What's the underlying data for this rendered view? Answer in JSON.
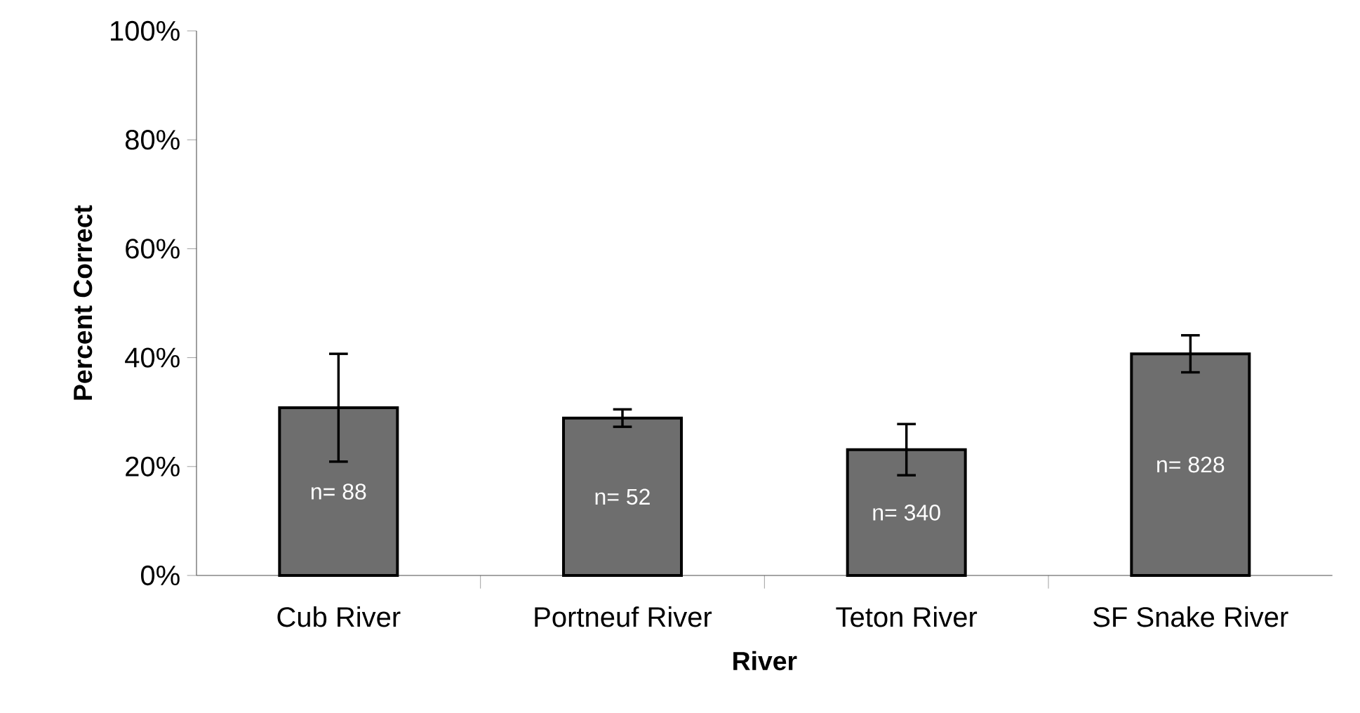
{
  "chart_data": {
    "type": "bar",
    "xlabel": "River",
    "ylabel": "Percent Correct",
    "categories": [
      "Cub River",
      "Portneuf River",
      "Teton River",
      "SF Snake River"
    ],
    "values": [
      30.8,
      28.9,
      23.1,
      40.7
    ],
    "errors": [
      9.9,
      1.6,
      4.7,
      3.4
    ],
    "color": "#6e6e6e",
    "ylim": [
      0,
      100
    ],
    "yticks": [
      {
        "value": 0,
        "label": "0%"
      },
      {
        "value": 20,
        "label": "20%"
      },
      {
        "value": 40,
        "label": "40%"
      },
      {
        "value": 60,
        "label": "60%"
      },
      {
        "value": 80,
        "label": "80%"
      },
      {
        "value": 100,
        "label": "100%"
      }
    ],
    "annotations": [
      "n= 88",
      "n= 52",
      "n= 340",
      "n= 828"
    ]
  }
}
